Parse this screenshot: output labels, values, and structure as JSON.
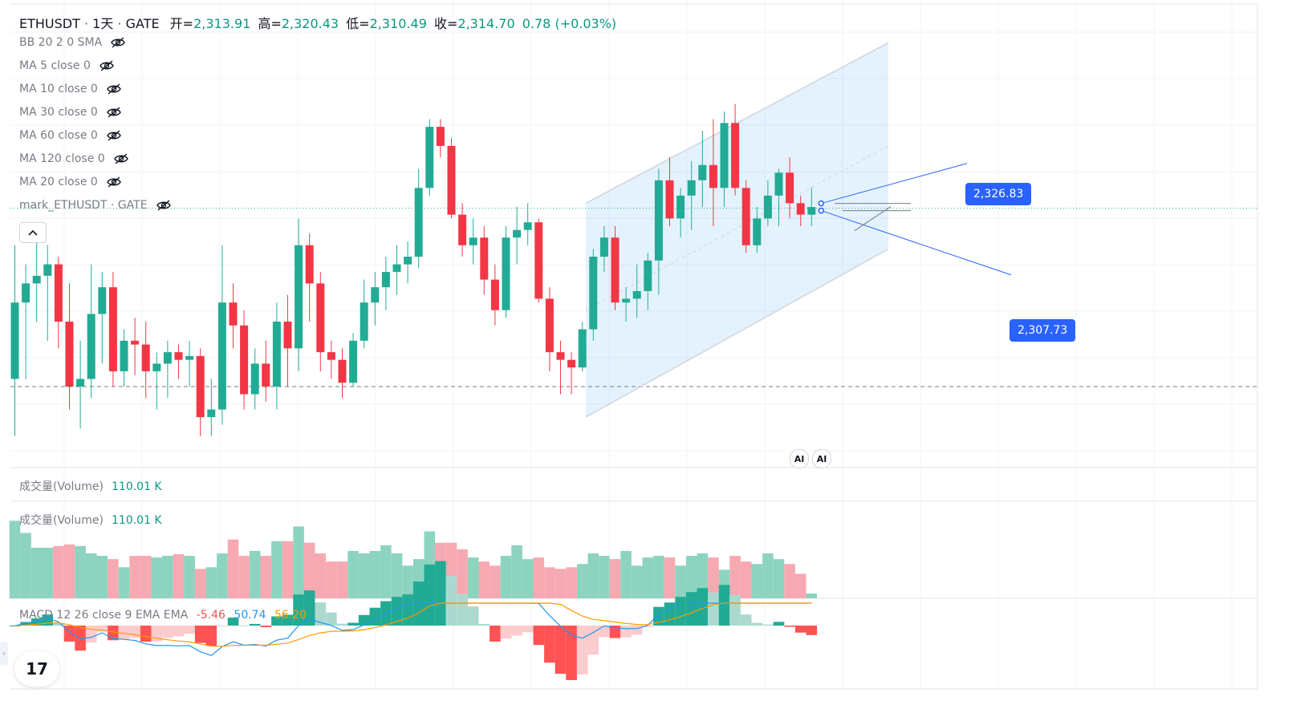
{
  "header": {
    "symbol": "ETHUSDT",
    "interval": "1天",
    "exchange": "GATE",
    "open_label": "开=",
    "open_value": "2,313.91",
    "high_label": "高=",
    "high_value": "2,320.43",
    "low_label": "低=",
    "low_value": "2,310.49",
    "close_label": "收=",
    "close_value": "2,314.70",
    "change": "0.78 (+0.03%)"
  },
  "indicators": [
    {
      "label": "BB 20 2 0 SMA"
    },
    {
      "label": "MA 5 close 0"
    },
    {
      "label": "MA 10 close 0"
    },
    {
      "label": "MA 30 close 0"
    },
    {
      "label": "MA 60 close 0"
    },
    {
      "label": "MA 120 close 0"
    },
    {
      "label": "MA 20 close 0"
    },
    {
      "label": "mark_ETHUSDT · GATE"
    }
  ],
  "volume_pane": {
    "label": "成交量(Volume)",
    "value": "110.01 K"
  },
  "volume_pane_2": {
    "label": "成交量(Volume)",
    "value": "110.01 K"
  },
  "macd": {
    "label": "MACD 12 26 close 9 EMA EMA",
    "histogram": "-5.46",
    "macd_value": "50.74",
    "signal_value": "56.20",
    "colors": {
      "macd": "#2196f3",
      "signal": "#ff9800",
      "hist_neg": "#ef5350"
    }
  },
  "price_labels": {
    "upper": "2,326.83",
    "lower": "2,307.73"
  },
  "ai_badges": [
    "AI",
    "AI"
  ],
  "logo_text": "17",
  "colors": {
    "up": "#22ab94",
    "down": "#f23645",
    "vol_up": "#8dd4c0",
    "vol_down": "#f7a9b2",
    "accent": "#2962ff"
  },
  "chart_data": {
    "type": "candlestick",
    "title": "ETHUSDT · 1天 · GATE",
    "candles": [
      {
        "o": 2270,
        "h": 2305,
        "l": 2255,
        "c": 2290
      },
      {
        "o": 2290,
        "h": 2300,
        "l": 2270,
        "c": 2295
      },
      {
        "o": 2295,
        "h": 2308,
        "l": 2285,
        "c": 2297
      },
      {
        "o": 2297,
        "h": 2305,
        "l": 2280,
        "c": 2300
      },
      {
        "o": 2300,
        "h": 2302,
        "l": 2278,
        "c": 2285
      },
      {
        "o": 2285,
        "h": 2295,
        "l": 2262,
        "c": 2268
      },
      {
        "o": 2268,
        "h": 2280,
        "l": 2257,
        "c": 2270
      },
      {
        "o": 2270,
        "h": 2300,
        "l": 2265,
        "c": 2287
      },
      {
        "o": 2287,
        "h": 2298,
        "l": 2274,
        "c": 2294
      },
      {
        "o": 2294,
        "h": 2298,
        "l": 2268,
        "c": 2272
      },
      {
        "o": 2272,
        "h": 2283,
        "l": 2268,
        "c": 2280
      },
      {
        "o": 2280,
        "h": 2286,
        "l": 2271,
        "c": 2279
      },
      {
        "o": 2279,
        "h": 2285,
        "l": 2265,
        "c": 2272
      },
      {
        "o": 2272,
        "h": 2277,
        "l": 2262,
        "c": 2274
      },
      {
        "o": 2274,
        "h": 2280,
        "l": 2265,
        "c": 2277
      },
      {
        "o": 2277,
        "h": 2279,
        "l": 2270,
        "c": 2275
      },
      {
        "o": 2275,
        "h": 2280,
        "l": 2268,
        "c": 2276
      },
      {
        "o": 2276,
        "h": 2278,
        "l": 2255,
        "c": 2260
      },
      {
        "o": 2260,
        "h": 2270,
        "l": 2255,
        "c": 2262
      },
      {
        "o": 2262,
        "h": 2305,
        "l": 2258,
        "c": 2290
      },
      {
        "o": 2290,
        "h": 2295,
        "l": 2278,
        "c": 2284
      },
      {
        "o": 2284,
        "h": 2288,
        "l": 2262,
        "c": 2266
      },
      {
        "o": 2266,
        "h": 2278,
        "l": 2262,
        "c": 2274
      },
      {
        "o": 2274,
        "h": 2280,
        "l": 2264,
        "c": 2268
      },
      {
        "o": 2268,
        "h": 2290,
        "l": 2262,
        "c": 2285
      },
      {
        "o": 2285,
        "h": 2292,
        "l": 2268,
        "c": 2278
      },
      {
        "o": 2278,
        "h": 2312,
        "l": 2272,
        "c": 2305
      },
      {
        "o": 2305,
        "h": 2308,
        "l": 2285,
        "c": 2295
      },
      {
        "o": 2295,
        "h": 2298,
        "l": 2272,
        "c": 2277
      },
      {
        "o": 2277,
        "h": 2280,
        "l": 2270,
        "c": 2275
      },
      {
        "o": 2275,
        "h": 2278,
        "l": 2265,
        "c": 2269
      },
      {
        "o": 2269,
        "h": 2282,
        "l": 2268,
        "c": 2280
      },
      {
        "o": 2280,
        "h": 2296,
        "l": 2278,
        "c": 2290
      },
      {
        "o": 2290,
        "h": 2298,
        "l": 2284,
        "c": 2294
      },
      {
        "o": 2294,
        "h": 2302,
        "l": 2288,
        "c": 2298
      },
      {
        "o": 2298,
        "h": 2305,
        "l": 2292,
        "c": 2300
      },
      {
        "o": 2300,
        "h": 2306,
        "l": 2295,
        "c": 2302
      },
      {
        "o": 2302,
        "h": 2325,
        "l": 2299,
        "c": 2320
      },
      {
        "o": 2320,
        "h": 2338,
        "l": 2318,
        "c": 2336
      },
      {
        "o": 2336,
        "h": 2338,
        "l": 2328,
        "c": 2331
      },
      {
        "o": 2331,
        "h": 2333,
        "l": 2312,
        "c": 2313
      },
      {
        "o": 2313,
        "h": 2316,
        "l": 2302,
        "c": 2305
      },
      {
        "o": 2305,
        "h": 2312,
        "l": 2300,
        "c": 2307
      },
      {
        "o": 2307,
        "h": 2310,
        "l": 2292,
        "c": 2296
      },
      {
        "o": 2296,
        "h": 2300,
        "l": 2284,
        "c": 2288
      },
      {
        "o": 2288,
        "h": 2310,
        "l": 2286,
        "c": 2307
      },
      {
        "o": 2307,
        "h": 2315,
        "l": 2300,
        "c": 2309
      },
      {
        "o": 2309,
        "h": 2316,
        "l": 2305,
        "c": 2311
      },
      {
        "o": 2311,
        "h": 2312,
        "l": 2290,
        "c": 2291
      },
      {
        "o": 2291,
        "h": 2294,
        "l": 2272,
        "c": 2277
      },
      {
        "o": 2277,
        "h": 2280,
        "l": 2266,
        "c": 2275
      },
      {
        "o": 2275,
        "h": 2277,
        "l": 2266,
        "c": 2273
      },
      {
        "o": 2273,
        "h": 2285,
        "l": 2272,
        "c": 2283
      },
      {
        "o": 2283,
        "h": 2304,
        "l": 2280,
        "c": 2302
      },
      {
        "o": 2302,
        "h": 2310,
        "l": 2298,
        "c": 2307
      },
      {
        "o": 2307,
        "h": 2310,
        "l": 2288,
        "c": 2290
      },
      {
        "o": 2290,
        "h": 2294,
        "l": 2285,
        "c": 2291
      },
      {
        "o": 2291,
        "h": 2300,
        "l": 2286,
        "c": 2293
      },
      {
        "o": 2293,
        "h": 2303,
        "l": 2288,
        "c": 2301
      },
      {
        "o": 2301,
        "h": 2325,
        "l": 2292,
        "c": 2322
      },
      {
        "o": 2322,
        "h": 2328,
        "l": 2310,
        "c": 2312
      },
      {
        "o": 2312,
        "h": 2320,
        "l": 2307,
        "c": 2318
      },
      {
        "o": 2318,
        "h": 2327,
        "l": 2309,
        "c": 2322
      },
      {
        "o": 2322,
        "h": 2335,
        "l": 2315,
        "c": 2326
      },
      {
        "o": 2326,
        "h": 2338,
        "l": 2310,
        "c": 2320
      },
      {
        "o": 2320,
        "h": 2340,
        "l": 2315,
        "c": 2337
      },
      {
        "o": 2337,
        "h": 2342,
        "l": 2318,
        "c": 2320
      },
      {
        "o": 2320,
        "h": 2322,
        "l": 2303,
        "c": 2305
      },
      {
        "o": 2305,
        "h": 2315,
        "l": 2303,
        "c": 2312
      },
      {
        "o": 2312,
        "h": 2322,
        "l": 2310,
        "c": 2318
      },
      {
        "o": 2318,
        "h": 2325,
        "l": 2310,
        "c": 2324
      },
      {
        "o": 2324,
        "h": 2328,
        "l": 2312,
        "c": 2316
      },
      {
        "o": 2316,
        "h": 2318,
        "l": 2310,
        "c": 2313
      },
      {
        "o": 2313,
        "h": 2320,
        "l": 2310,
        "c": 2315
      }
    ],
    "volume": [
      95,
      80,
      62,
      62,
      64,
      66,
      64,
      55,
      52,
      48,
      38,
      52,
      52,
      50,
      52,
      54,
      52,
      36,
      38,
      55,
      72,
      52,
      58,
      52,
      70,
      70,
      88,
      68,
      55,
      45,
      45,
      58,
      55,
      58,
      65,
      55,
      40,
      48,
      82,
      68,
      68,
      60,
      50,
      45,
      40,
      52,
      65,
      48,
      50,
      38,
      36,
      38,
      42,
      55,
      52,
      48,
      58,
      40,
      50,
      52,
      50,
      40,
      52,
      55,
      50,
      35,
      52,
      45,
      42,
      55,
      48,
      42,
      30,
      6
    ],
    "volume_value": "110.01 K",
    "macd": {
      "hist": -5.46,
      "macd": 50.74,
      "signal": 56.2
    },
    "channel": {
      "upper_start": 2316,
      "upper_end": 2358,
      "lower_start": 2260,
      "lower_end": 2304
    },
    "projection": {
      "upper": 2326.83,
      "lower": 2307.73
    },
    "reference_lines": {
      "last_price": 2314.7,
      "dashed": 2268
    }
  }
}
